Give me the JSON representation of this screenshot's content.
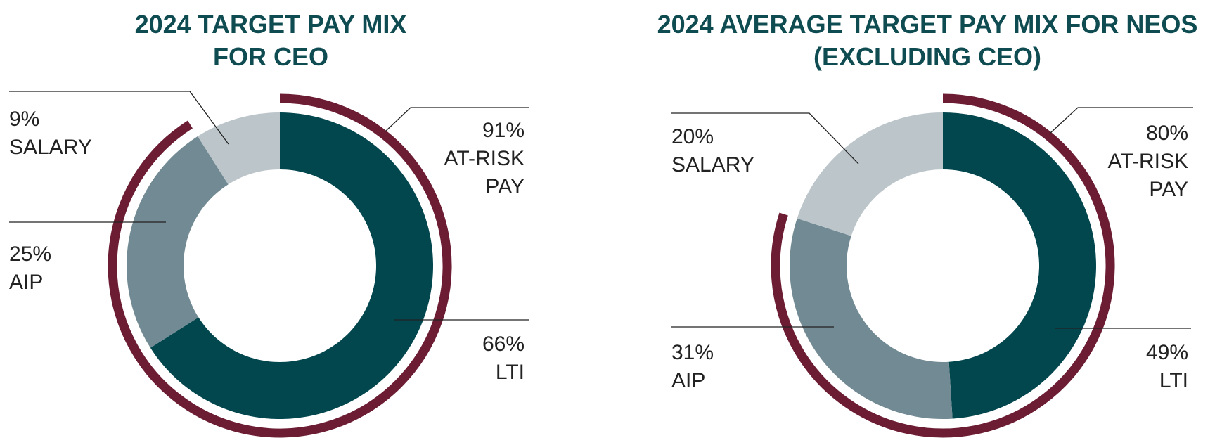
{
  "chart_data": [
    {
      "type": "pie",
      "title_lines": [
        "2024 TARGET PAY MIX",
        "FOR CEO"
      ],
      "categories": [
        "LTI",
        "AIP",
        "SALARY"
      ],
      "values": [
        66,
        25,
        9
      ],
      "value_labels": [
        "66%",
        "25%",
        "9%"
      ],
      "category_labels": [
        "LTI",
        "AIP",
        "SALARY"
      ],
      "at_risk": {
        "value": 91,
        "value_label": "91%",
        "label_lines": [
          "AT-RISK",
          "PAY"
        ]
      }
    },
    {
      "type": "pie",
      "title_lines": [
        "2024 AVERAGE TARGET PAY MIX FOR NEOS",
        "(EXCLUDING CEO)"
      ],
      "categories": [
        "LTI",
        "AIP",
        "SALARY"
      ],
      "values": [
        49,
        31,
        20
      ],
      "value_labels": [
        "49%",
        "31%",
        "20%"
      ],
      "category_labels": [
        "LTI",
        "AIP",
        "SALARY"
      ],
      "at_risk": {
        "value": 80,
        "value_label": "80%",
        "label_lines": [
          "AT-RISK",
          "PAY"
        ]
      }
    }
  ],
  "colors": {
    "lti": "#02464e",
    "aip": "#728a93",
    "salary": "#bcc5ca",
    "at_risk_arc": "#6c1d34",
    "title": "#0f4c52",
    "leader_line": "#222222"
  }
}
